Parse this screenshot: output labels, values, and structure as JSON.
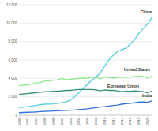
{
  "chart_data": {
    "type": "line",
    "x": [
      1990,
      1991,
      1992,
      1993,
      1994,
      1995,
      1996,
      1997,
      1998,
      1999,
      2000,
      2001,
      2002,
      2003,
      2004,
      2005,
      2006,
      2007,
      2008,
      2009,
      2010,
      2011,
      2012,
      2013,
      2014,
      2015,
      2016,
      2017,
      2018,
      2019,
      2020,
      2021
    ],
    "series": [
      {
        "name": "China",
        "color": "#55cbe6",
        "values": [
          820,
          870,
          930,
          1000,
          1060,
          1150,
          1200,
          1210,
          1240,
          1290,
          1350,
          1450,
          1650,
          2000,
          2450,
          2900,
          3350,
          3800,
          4150,
          4600,
          5300,
          6000,
          6500,
          6900,
          7100,
          7300,
          7700,
          8200,
          8900,
          9400,
          9900,
          10600
        ]
      },
      {
        "name": "United States",
        "color": "#8ee58c",
        "values": [
          3200,
          3250,
          3300,
          3400,
          3500,
          3550,
          3700,
          3750,
          3800,
          3850,
          4000,
          3850,
          3900,
          3950,
          4000,
          4050,
          4000,
          4150,
          4100,
          3950,
          4150,
          4100,
          4050,
          4100,
          4150,
          4100,
          4150,
          4200,
          4250,
          4200,
          4050,
          4250
        ]
      },
      {
        "name": "European Union",
        "color": "#2f8f78",
        "values": [
          2250,
          2300,
          2350,
          2400,
          2450,
          2500,
          2550,
          2550,
          2600,
          2600,
          2650,
          2700,
          2700,
          2750,
          2800,
          2800,
          2800,
          2800,
          2750,
          2650,
          2750,
          2700,
          2700,
          2650,
          2550,
          2600,
          2600,
          2650,
          2600,
          2550,
          2450,
          2600
        ]
      },
      {
        "name": "India",
        "color": "#2f6fd8",
        "values": [
          280,
          300,
          320,
          340,
          360,
          390,
          420,
          440,
          460,
          480,
          500,
          520,
          540,
          570,
          610,
          650,
          700,
          760,
          820,
          880,
          940,
          1000,
          1060,
          1110,
          1200,
          1250,
          1300,
          1350,
          1420,
          1450,
          1400,
          1550
        ]
      }
    ],
    "xlim": [
      1990,
      2021
    ],
    "xticks": [
      1990,
      1992,
      1994,
      1996,
      1998,
      2000,
      2002,
      2004,
      2006,
      2008,
      2010,
      2012,
      2014,
      2016,
      2018,
      2020
    ],
    "ylim": [
      0,
      12000
    ],
    "yticks": [
      0,
      {
        "value": 2000,
        "label": "2 000"
      },
      {
        "value": 4000,
        "label": "4 000"
      },
      {
        "value": 6000,
        "label": "6 000"
      },
      {
        "value": 8000,
        "label": "8 000"
      },
      {
        "value": 10000,
        "label": "10 000"
      },
      {
        "value": 12000,
        "label": "12 000"
      }
    ],
    "grid": true
  }
}
